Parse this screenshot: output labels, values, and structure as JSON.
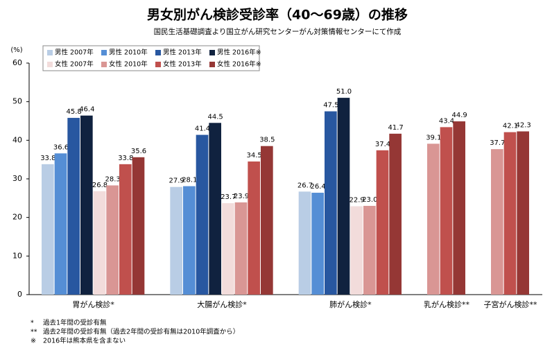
{
  "chart_data": {
    "type": "bar",
    "title": "男女別がん検診受診率（40～69歳）の推移",
    "subtitle": "国民生活基礎調査より国立がん研究センターがん対策情報センターにて作成",
    "y_label": "(%)",
    "categories": [
      "胃がん検診*",
      "大腸がん検診*",
      "肺がん検診*",
      "乳がん検診**",
      "子宮がん検診**"
    ],
    "series": [
      {
        "name": "男性 2007年",
        "color": "#b9cde5",
        "values": [
          33.8,
          27.9,
          26.7,
          null,
          null
        ]
      },
      {
        "name": "男性 2010年",
        "color": "#558ed5",
        "values": [
          36.6,
          28.1,
          26.4,
          null,
          null
        ]
      },
      {
        "name": "男性 2013年",
        "color": "#2857a0",
        "values": [
          45.8,
          41.4,
          47.5,
          null,
          null
        ]
      },
      {
        "name": "男性 2016年※",
        "color": "#10223f",
        "values": [
          46.4,
          44.5,
          51.0,
          null,
          null
        ],
        "value_labels": [
          "46.4",
          "44.5",
          "51.0",
          null,
          null
        ]
      },
      {
        "name": "女性 2007年",
        "color": "#f2dcdb",
        "values": [
          26.8,
          23.7,
          22.9,
          null,
          null
        ]
      },
      {
        "name": "女性 2010年",
        "color": "#d99694",
        "values": [
          28.3,
          23.9,
          23.0,
          39.1,
          37.7
        ],
        "value_labels": [
          "28.3",
          "23.9",
          "23.0",
          "39.1",
          "37.7"
        ]
      },
      {
        "name": "女性 2013年",
        "color": "#c0504d",
        "values": [
          33.8,
          34.5,
          37.4,
          43.4,
          42.1
        ]
      },
      {
        "name": "女性 2016年※",
        "color": "#953735",
        "values": [
          35.6,
          38.5,
          41.7,
          44.9,
          42.3
        ]
      }
    ],
    "ylim": [
      0,
      60
    ],
    "yticks": [
      0,
      10,
      20,
      30,
      40,
      50,
      60
    ],
    "grid": false,
    "legend": "top-left"
  },
  "notes": [
    {
      "mark": "*",
      "text": "過去1年間の受診有無"
    },
    {
      "mark": "**",
      "text": "過去2年間の受診有無（過去2年間の受診有無は2010年調査から）"
    },
    {
      "mark": "※",
      "text": "2016年は熊本県を含まない"
    }
  ]
}
